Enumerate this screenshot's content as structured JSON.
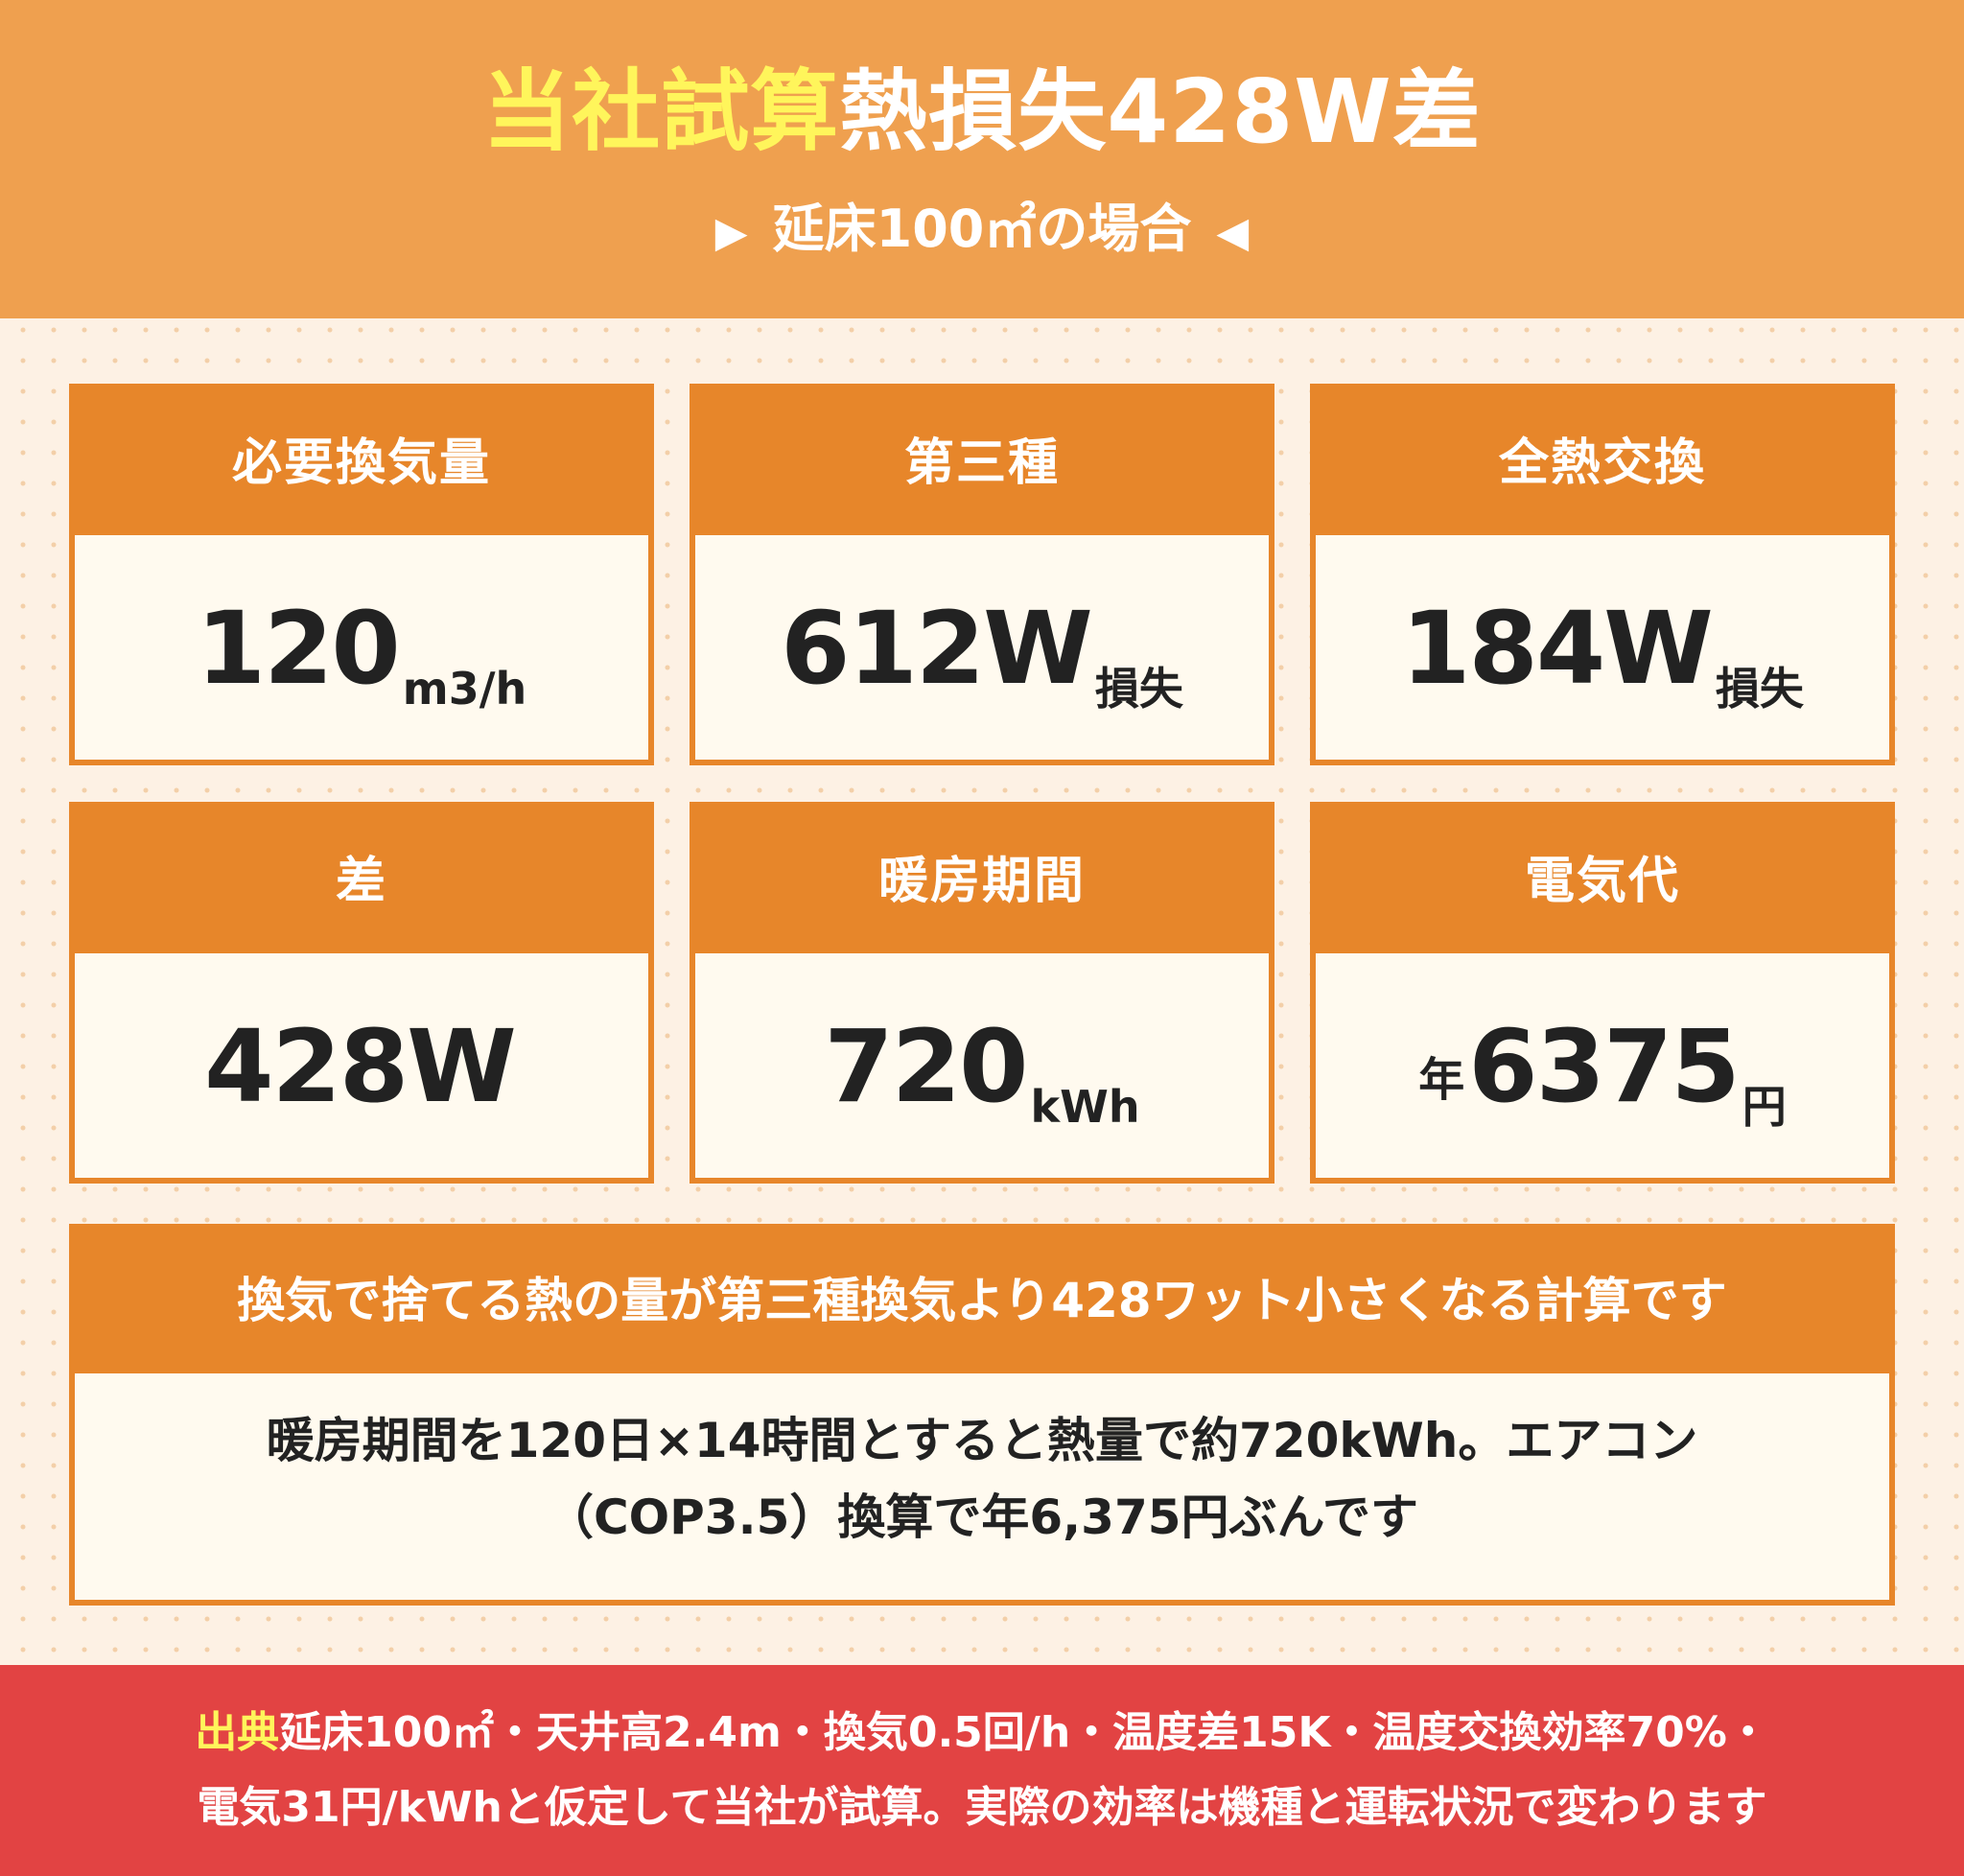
{
  "header": {
    "title_highlight": "当社試算",
    "title_rest": "熱損失428W差",
    "subtitle_left_arrow": "▶",
    "subtitle_text": "延床100㎡の場合",
    "subtitle_right_arrow": "◀",
    "background_color": "#efa04f",
    "highlight_color": "#fff55b"
  },
  "cards": [
    {
      "label": "必要換気量",
      "prefix": "",
      "value": "120",
      "unit": "m3/h"
    },
    {
      "label": "第三種",
      "prefix": "",
      "value": "612W",
      "unit": "損失"
    },
    {
      "label": "全熱交換",
      "prefix": "",
      "value": "184W",
      "unit": "損失"
    },
    {
      "label": "差",
      "prefix": "",
      "value": "428W",
      "unit": ""
    },
    {
      "label": "暖房期間",
      "prefix": "",
      "value": "720",
      "unit": "kWh"
    },
    {
      "label": "電気代",
      "prefix": "年",
      "value": "6375",
      "unit": "円"
    }
  ],
  "card_color": "#e7862a",
  "explanation": {
    "heading": "換気で捨てる熱の量が第三種換気より428ワット小さくなる計算です",
    "line1": "暖房期間を120日×14時間とすると熱量で約720kWh。エアコン",
    "line2": "（COP3.5）換算で年6,375円ぶんです"
  },
  "footer": {
    "label": "出典",
    "line1_rest": "延床100㎡・天井高2.4m・換気0.5回/h・温度差15K・温度交換効率70%・",
    "line2": "電気31円/kWhと仮定して当社が試算。実際の効率は機種と運転状況で変わります",
    "background_color": "#e24343"
  }
}
